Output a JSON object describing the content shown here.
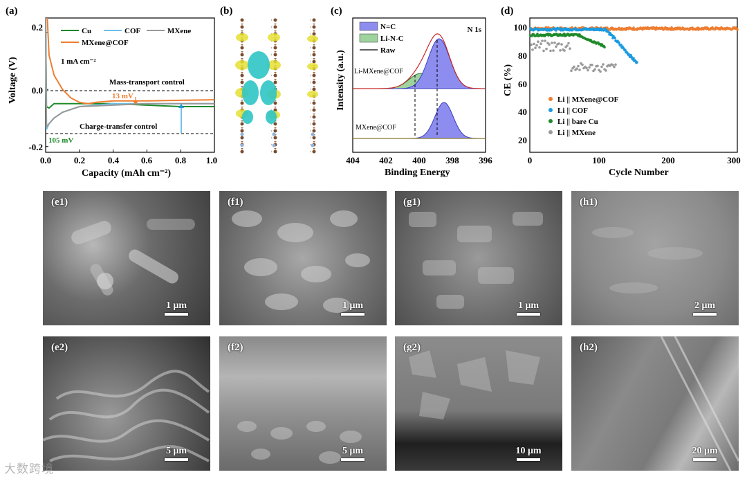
{
  "panels": {
    "a": {
      "label": "(a)",
      "ylabel": "Voltage (V)",
      "xlabel": "Capacity (mAh cm⁻²)",
      "current": "1 mA cm⁻²",
      "legend": [
        "Cu",
        "COF",
        "MXene",
        "MXene@COF"
      ],
      "annotations": {
        "mass": "Mass-transport control",
        "charge": "Charge-transfer control",
        "mv13": "13 mV",
        "mv105": "105 mV"
      },
      "yticks": [
        "0.2",
        "0.0",
        "-0.2"
      ],
      "xticks": [
        "0.0",
        "0.2",
        "0.4",
        "0.6",
        "0.8",
        "1.0"
      ]
    },
    "b": {
      "label": "(b)"
    },
    "c": {
      "label": "(c)",
      "ylabel": "Intensity (a.u.)",
      "xlabel": "Binding Energy",
      "region": "N 1s",
      "legend": [
        "N=C",
        "Li-N-C",
        "Raw"
      ],
      "curve_labels": [
        "Li-MXene@COF",
        "MXene@COF"
      ],
      "xticks": [
        "404",
        "402",
        "400",
        "398",
        "396"
      ]
    },
    "d": {
      "label": "(d)",
      "ylabel": "CE (%)",
      "xlabel": "Cycle Number",
      "legend": [
        "Li || MXene@COF",
        "Li || COF",
        "Li || bare Cu",
        "Li || MXene"
      ],
      "yticks": [
        "100",
        "80",
        "60",
        "40",
        "20"
      ],
      "xticks": [
        "0",
        "100",
        "200",
        "300"
      ]
    }
  },
  "sem": [
    {
      "label": "(e1)",
      "scale": "1 μm"
    },
    {
      "label": "(f1)",
      "scale": "1 μm"
    },
    {
      "label": "(g1)",
      "scale": "1 μm"
    },
    {
      "label": "(h1)",
      "scale": "2 μm"
    },
    {
      "label": "(e2)",
      "scale": "5 μm"
    },
    {
      "label": "(f2)",
      "scale": "5 μm"
    },
    {
      "label": "(g2)",
      "scale": "10 μm"
    },
    {
      "label": "(h2)",
      "scale": "20 μm"
    }
  ],
  "watermark": "大数跨境",
  "colors": {
    "orange": "#ee7d31",
    "blue": "#1a9ae0",
    "green": "#1e8a2a",
    "gray": "#999999",
    "cof": "#6ec1e4"
  },
  "chart_data": [
    {
      "type": "line",
      "title": "",
      "xlabel": "Capacity (mAh cm⁻²)",
      "ylabel": "Voltage (V)",
      "xlim": [
        0,
        1.0
      ],
      "ylim": [
        -0.22,
        0.25
      ],
      "series": [
        {
          "name": "Cu",
          "x": [
            0.0,
            0.005,
            0.02,
            0.05,
            0.1,
            0.2,
            0.4,
            0.6,
            0.8,
            1.0
          ],
          "y": [
            0.25,
            -0.06,
            -0.065,
            -0.05,
            -0.05,
            -0.05,
            -0.05,
            -0.055,
            -0.06,
            -0.06
          ]
        },
        {
          "name": "COF",
          "x": [
            0.0,
            0.005,
            0.02,
            0.05,
            0.1,
            0.2,
            0.4,
            0.6,
            0.8,
            1.0
          ],
          "y": [
            0.25,
            -0.14,
            -0.12,
            -0.1,
            -0.08,
            -0.06,
            -0.05,
            -0.05,
            -0.05,
            -0.05
          ]
        },
        {
          "name": "MXene",
          "x": [
            0.0,
            0.005,
            0.02,
            0.05,
            0.1,
            0.2,
            0.4,
            0.6,
            0.8,
            1.0
          ],
          "y": [
            0.25,
            -0.13,
            -0.12,
            -0.1,
            -0.08,
            -0.06,
            -0.055,
            -0.05,
            -0.05,
            -0.05
          ]
        },
        {
          "name": "MXene@COF",
          "x": [
            0.01,
            0.02,
            0.05,
            0.1,
            0.15,
            0.2,
            0.25,
            0.3,
            0.4,
            0.6,
            0.8,
            1.0
          ],
          "y": [
            0.25,
            0.12,
            0.05,
            0.0,
            -0.03,
            -0.045,
            -0.05,
            -0.045,
            -0.04,
            -0.04,
            -0.038,
            -0.036
          ]
        }
      ]
    },
    {
      "type": "line",
      "title": "",
      "xlabel": "Binding Energy",
      "ylabel": "Intensity (a.u.)",
      "xlim": [
        404,
        396
      ],
      "series": [
        {
          "name": "N=C",
          "center": 398.8,
          "width": 0.65
        },
        {
          "name": "Li-N-C",
          "center": 399.9,
          "width": 0.7
        },
        {
          "name": "MXene@COF N=C",
          "center": 398.5,
          "width": 0.55
        }
      ]
    },
    {
      "type": "scatter",
      "title": "",
      "xlabel": "Cycle Number",
      "ylabel": "CE (%)",
      "xlim": [
        0,
        300
      ],
      "ylim": [
        10,
        105
      ],
      "series": [
        {
          "name": "Li || MXene@COF",
          "cycles": 300,
          "mean": 97.5
        },
        {
          "name": "Li || COF",
          "cycles": 155,
          "mean_early": 97,
          "end": 73
        },
        {
          "name": "Li || bare Cu",
          "cycles": 108,
          "mean_early": 93,
          "end": 85
        },
        {
          "name": "Li || MXene",
          "cycles": 125,
          "mean_early": 85,
          "end": 70
        }
      ]
    }
  ]
}
